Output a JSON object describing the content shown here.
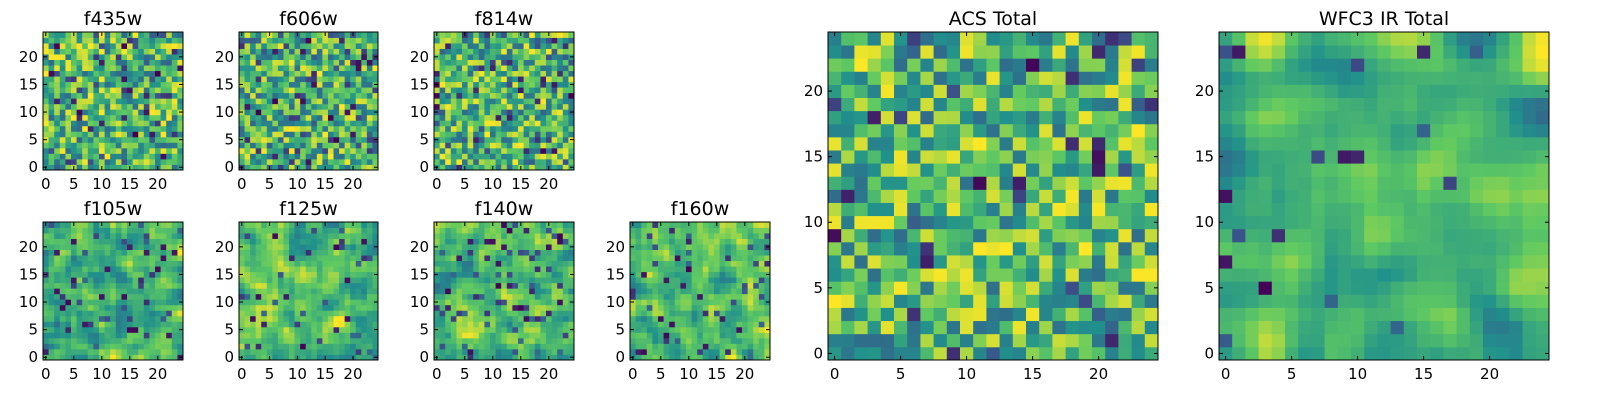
{
  "chart_data": [
    {
      "type": "heatmap",
      "title": "f435w",
      "size": 25,
      "xticks": [
        "0",
        "5",
        "10",
        "15",
        "20"
      ],
      "yticks": [
        "0",
        "5",
        "10",
        "15",
        "20"
      ],
      "seed": 11,
      "smooth": 0,
      "dark": 0.1
    },
    {
      "type": "heatmap",
      "title": "f606w",
      "size": 25,
      "xticks": [
        "0",
        "5",
        "10",
        "15",
        "20"
      ],
      "yticks": [
        "0",
        "5",
        "10",
        "15",
        "20"
      ],
      "seed": 23,
      "smooth": 0,
      "dark": 0.12
    },
    {
      "type": "heatmap",
      "title": "f814w",
      "size": 25,
      "xticks": [
        "0",
        "5",
        "10",
        "15",
        "20"
      ],
      "yticks": [
        "0",
        "5",
        "10",
        "15",
        "20"
      ],
      "seed": 37,
      "smooth": 0,
      "dark": 0.1
    },
    {
      "type": "heatmap",
      "title": "f105w",
      "size": 25,
      "xticks": [
        "0",
        "5",
        "10",
        "15",
        "20"
      ],
      "yticks": [
        "0",
        "5",
        "10",
        "15",
        "20"
      ],
      "seed": 41,
      "smooth": 1,
      "dark": 0.08
    },
    {
      "type": "heatmap",
      "title": "f125w",
      "size": 25,
      "xticks": [
        "0",
        "5",
        "10",
        "15",
        "20"
      ],
      "yticks": [
        "0",
        "5",
        "10",
        "15",
        "20"
      ],
      "seed": 53,
      "smooth": 1,
      "dark": 0.08
    },
    {
      "type": "heatmap",
      "title": "f140w",
      "size": 25,
      "xticks": [
        "0",
        "5",
        "10",
        "15",
        "20"
      ],
      "yticks": [
        "0",
        "5",
        "10",
        "15",
        "20"
      ],
      "seed": 67,
      "smooth": 1,
      "dark": 0.08
    },
    {
      "type": "heatmap",
      "title": "f160w",
      "size": 25,
      "xticks": [
        "0",
        "5",
        "10",
        "15",
        "20"
      ],
      "yticks": [
        "0",
        "5",
        "10",
        "15",
        "20"
      ],
      "seed": 79,
      "smooth": 1,
      "dark": 0.08
    },
    {
      "type": "heatmap",
      "title": "ACS Total",
      "size": 25,
      "xticks": [
        "0",
        "5",
        "10",
        "15",
        "20"
      ],
      "yticks": [
        "0",
        "5",
        "10",
        "15",
        "20"
      ],
      "seed": 97,
      "smooth": 0,
      "dark": 0.06
    },
    {
      "type": "heatmap",
      "title": "WFC3 IR Total",
      "size": 25,
      "xticks": [
        "0",
        "5",
        "10",
        "15",
        "20"
      ],
      "yticks": [
        "0",
        "5",
        "10",
        "15",
        "20"
      ],
      "seed": 113,
      "smooth": 2,
      "dark": 0.04
    }
  ],
  "colormap": [
    "#440154",
    "#3b528b",
    "#21918c",
    "#5ec962",
    "#fde725"
  ]
}
